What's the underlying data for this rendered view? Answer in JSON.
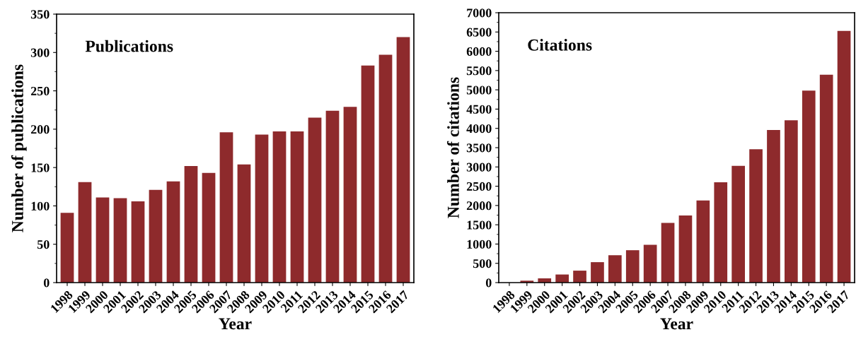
{
  "chart_data": [
    {
      "type": "bar",
      "title": "Publications",
      "xlabel": "Year",
      "ylabel": "Number of publications",
      "categories": [
        "1998",
        "1999",
        "2000",
        "2001",
        "2002",
        "2003",
        "2004",
        "2005",
        "2006",
        "2007",
        "2008",
        "2009",
        "2010",
        "2011",
        "2012",
        "2013",
        "2014",
        "2015",
        "2016",
        "2017"
      ],
      "values": [
        91,
        131,
        111,
        110,
        106,
        121,
        132,
        152,
        143,
        196,
        154,
        193,
        197,
        197,
        215,
        224,
        229,
        283,
        297,
        320
      ],
      "color": "#8e2a2c",
      "ylim": [
        0,
        350
      ],
      "yticks": [
        0,
        50,
        100,
        150,
        200,
        250,
        300,
        350
      ],
      "grid": false
    },
    {
      "type": "bar",
      "title": "Citations",
      "xlabel": "Year",
      "ylabel": "Number of citations",
      "categories": [
        "1998",
        "1999",
        "2000",
        "2001",
        "2002",
        "2003",
        "2004",
        "2005",
        "2006",
        "2007",
        "2008",
        "2009",
        "2010",
        "2011",
        "2012",
        "2013",
        "2014",
        "2015",
        "2016",
        "2017"
      ],
      "values": [
        0,
        50,
        110,
        210,
        310,
        530,
        710,
        840,
        980,
        1550,
        1740,
        2130,
        2600,
        3030,
        3460,
        3960,
        4210,
        4980,
        5390,
        6530
      ],
      "color": "#8e2a2c",
      "ylim": [
        0,
        7000
      ],
      "yticks": [
        0,
        500,
        1000,
        1500,
        2000,
        2500,
        3000,
        3500,
        4000,
        4500,
        5000,
        5500,
        6000,
        6500,
        7000
      ],
      "grid": false
    }
  ]
}
